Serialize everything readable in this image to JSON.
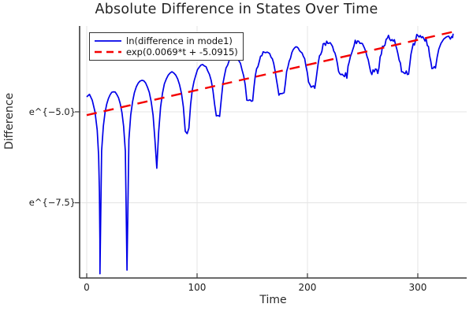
{
  "title": "Absolute Difference in States Over Time",
  "xlabel": "Time",
  "ylabel": "Difference",
  "legend": {
    "items": [
      {
        "label": "ln(difference in mode1)",
        "color": "#0000e8",
        "style": "solid"
      },
      {
        "label": "exp(0.0069*t + -5.0915)",
        "color": "#f40000",
        "style": "dashed"
      }
    ]
  },
  "colors": {
    "blue_series": "#0000e8",
    "red_fit": "#f40000",
    "grid": "#e4e4e4",
    "spine": "#3a3a3a",
    "text": "#1c1c1c",
    "background": "#ffffff"
  },
  "chart_data": {
    "type": "line",
    "title": "Absolute Difference in States Over Time",
    "xlabel": "Time",
    "ylabel": "Difference",
    "grid": true,
    "legend_position": "top-left",
    "xlim": [
      -6.43,
      344.3
    ],
    "ylim_ln": [
      -9.567,
      -2.641
    ],
    "xticks": [
      {
        "t": 0,
        "label": "0"
      },
      {
        "t": 100,
        "label": "100"
      },
      {
        "t": 200,
        "label": "200"
      },
      {
        "t": 300,
        "label": "300"
      }
    ],
    "yticks": [
      {
        "v": -5.0,
        "label": "e^{−5.0}"
      },
      {
        "v": -7.5,
        "label": "e^{−7.5}"
      }
    ],
    "series": [
      {
        "name": "ln(difference in mode1)",
        "color": "#0000e8",
        "style": "solid",
        "width": 1.7,
        "model": "log-abs-oscillation",
        "prefix_points": [
          [
            0,
            -4.59
          ],
          [
            2.5,
            -4.52
          ],
          [
            5,
            -4.68
          ],
          [
            7.5,
            -5.0
          ],
          [
            9.5,
            -5.5
          ],
          [
            10.8,
            -6.2
          ],
          [
            11.5,
            -7.2
          ],
          [
            11.9,
            -8.5
          ],
          [
            12,
            -9.45
          ]
        ],
        "arches": [
          {
            "t0": 12,
            "t1": 36.5,
            "peak": -4.44,
            "d0": -9.45,
            "d1": -9.35,
            "noise": 0.012,
            "n": 16
          },
          {
            "t0": 36.5,
            "t1": 63.5,
            "peak": -4.13,
            "d0": -9.35,
            "d1": -6.55,
            "noise": 0.012,
            "n": 16
          },
          {
            "t0": 63.5,
            "t1": 91,
            "peak": -3.9,
            "d0": -6.55,
            "d1": -5.6,
            "noise": 0.018,
            "n": 16
          },
          {
            "t0": 91,
            "t1": 119,
            "peak": -3.72,
            "d0": -5.6,
            "d1": -5.1,
            "noise": 0.025,
            "n": 18
          },
          {
            "t0": 119,
            "t1": 148,
            "peak": -3.48,
            "d0": -5.1,
            "d1": -4.67,
            "noise": 0.035,
            "n": 20
          },
          {
            "t0": 148,
            "t1": 176.5,
            "peak": -3.36,
            "d0": -4.67,
            "d1": -4.5,
            "noise": 0.05,
            "n": 24
          },
          {
            "t0": 176.5,
            "t1": 204.5,
            "peak": -3.25,
            "d0": -4.5,
            "d1": -4.3,
            "noise": 0.06,
            "n": 24
          },
          {
            "t0": 204.5,
            "t1": 232.5,
            "peak": -3.08,
            "d0": -4.3,
            "d1": -4.0,
            "noise": 0.07,
            "n": 26
          },
          {
            "t0": 232.5,
            "t1": 260.5,
            "peak": -3.04,
            "d0": -4.0,
            "d1": -3.9,
            "noise": 0.08,
            "n": 26
          },
          {
            "t0": 260.5,
            "t1": 288.5,
            "peak": -2.97,
            "d0": -3.9,
            "d1": -3.95,
            "noise": 0.08,
            "n": 26
          },
          {
            "t0": 288.5,
            "t1": 316,
            "peak": -2.88,
            "d0": -3.95,
            "d1": -3.8,
            "noise": 0.09,
            "n": 26
          }
        ],
        "suffix_points": [
          [
            317.5,
            -3.5
          ],
          [
            319,
            -3.28
          ],
          [
            321,
            -3.12
          ],
          [
            323.5,
            -3.0
          ],
          [
            326,
            -2.94
          ],
          [
            328,
            -2.92
          ],
          [
            329.5,
            -3.0
          ],
          [
            330.7,
            -2.93
          ],
          [
            331.5,
            -2.96
          ],
          [
            332,
            -2.85
          ]
        ]
      },
      {
        "name": "exp(0.0069*t + -5.0915)",
        "color": "#f40000",
        "style": "dashed",
        "width": 2.4,
        "dash": [
          13,
          9
        ],
        "model": "linear-fit-ln",
        "slope": 0.0069,
        "intercept": -5.0915,
        "t_range": [
          0,
          333.5
        ]
      }
    ]
  }
}
